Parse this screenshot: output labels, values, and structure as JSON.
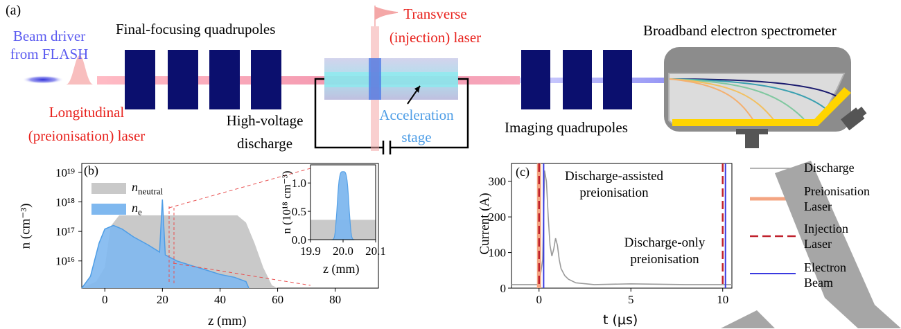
{
  "panel_a": {
    "tag": "(a)",
    "beam_driver": [
      "Beam driver",
      "from FLASH"
    ],
    "final_focusing": "Final-focusing quadrupoles",
    "transverse_laser": [
      "Transverse",
      "(injection) laser"
    ],
    "spectrometer": "Broadband electron spectrometer",
    "longitudinal_laser": [
      "Longitudinal",
      "(preionisation) laser"
    ],
    "high_voltage": [
      "High-voltage",
      "discharge"
    ],
    "acceleration_stage": [
      "Acceleration",
      "stage"
    ],
    "imaging": "Imaging quadrupoles",
    "colors": {
      "quad": "#0b0f6e",
      "laser": "#e8211c",
      "driver": "#5b5bf0",
      "stage": "#4d9de6",
      "spectrometer_body": "#8c8c8c",
      "screen": "#ffd400"
    }
  },
  "panel_b": {
    "tag": "(b)",
    "ylabel_main": "n (cm⁻³)",
    "xlabel_main": "z (mm)",
    "ylabel_inset": "n (10¹⁸ cm⁻³)",
    "xlabel_inset": "z (mm)",
    "chart_data": {
      "type": "area",
      "title": "",
      "xlim": [
        -8,
        95
      ],
      "ylim_log": [
        1200000000000000.0,
        2e+19
      ],
      "x_ticks": [
        "0",
        "20",
        "40",
        "60",
        "80"
      ],
      "y_ticks": [
        "10¹⁶",
        "10¹⁷",
        "10¹⁸",
        "10¹⁹"
      ],
      "series": [
        {
          "name": "n_neutral",
          "color": "#c9c9c9",
          "x": [
            -8,
            -3,
            0,
            2,
            5,
            10,
            46,
            49,
            52,
            55,
            58,
            60
          ],
          "y": [
            1200000000000000.0,
            2000000000000000.0,
            6000000000000000.0,
            1.5e+17,
            3.5e+17,
            3.5e+17,
            3.5e+17,
            2e+17,
            4e+16,
            6000000000000000.0,
            1500000000000000.0,
            1200000000000000.0
          ]
        },
        {
          "name": "n_e",
          "color": "#7fb8ef",
          "x": [
            -8,
            -5,
            -2,
            0,
            3,
            6,
            10,
            15,
            19,
            20,
            21,
            25,
            30,
            35,
            40,
            45,
            49,
            50
          ],
          "y": [
            1200000000000000.0,
            3000000000000000.0,
            4e+16,
            1.2e+17,
            1.6e+17,
            1.2e+17,
            6.5e+16,
            3.5e+16,
            2e+16,
            1.2e+18,
            1.6e+16,
            1e+16,
            7000000000000000.0,
            5000000000000000.0,
            3500000000000000.0,
            2800000000000000.0,
            2000000000000000.0,
            1200000000000000.0
          ]
        }
      ],
      "inset": {
        "type": "area",
        "xlim": [
          19.9,
          20.1
        ],
        "ylim": [
          0,
          1.32
        ],
        "x_ticks": [
          "19.9",
          "20.0",
          "20.1"
        ],
        "y_ticks": [
          "0.0",
          "0.5",
          "1.0"
        ],
        "neutral_level": 0.35,
        "n_e_x": [
          19.97,
          19.98,
          19.99,
          20.0,
          20.01,
          20.02,
          20.03
        ],
        "n_e_y": [
          0,
          0.55,
          1.1,
          1.2,
          1.1,
          0.55,
          0
        ]
      },
      "legend_position": "top-left"
    }
  },
  "panel_c": {
    "tag": "(c)",
    "ylabel": "Current (A)",
    "xlabel": "t (μs)",
    "annot_assisted": [
      "Discharge-assisted",
      "preionisation"
    ],
    "annot_only": [
      "Discharge-only",
      "preionisation"
    ],
    "legend": [
      {
        "label": [
          "Discharge"
        ],
        "color": "#9a9a9a",
        "style": "solid"
      },
      {
        "label": [
          "Preionisation",
          "Laser"
        ],
        "color": "#f4a582",
        "style": "thick"
      },
      {
        "label": [
          "Injection",
          "Laser"
        ],
        "color": "#c0212c",
        "style": "dashed"
      },
      {
        "label": [
          "Electron",
          "Beam"
        ],
        "color": "#3a3ae0",
        "style": "solid"
      }
    ],
    "chart_data": {
      "type": "line",
      "title": "",
      "xlim": [
        -1.5,
        10.5
      ],
      "ylim": [
        0,
        350
      ],
      "x_ticks": [
        "0",
        "5",
        "10"
      ],
      "y_ticks": [
        "0",
        "100",
        "200",
        "300"
      ],
      "series": [
        {
          "name": "Discharge",
          "x": [
            -1.5,
            0,
            0.2,
            0.3,
            0.4,
            0.5,
            0.6,
            0.7,
            0.8,
            0.9,
            1.0,
            1.1,
            1.2,
            1.4,
            1.6,
            2.0,
            3.0,
            5.0,
            8.0,
            10.5
          ],
          "y": [
            10,
            10,
            80,
            330,
            300,
            200,
            120,
            90,
            110,
            140,
            120,
            80,
            55,
            35,
            25,
            15,
            10,
            12,
            10,
            10
          ]
        }
      ],
      "vlines": [
        {
          "name": "Preionisation Laser",
          "x": 0
        },
        {
          "name": "Injection Laser",
          "x": 0
        },
        {
          "name": "Electron Beam",
          "x": 0.25
        },
        {
          "name": "Injection Laser",
          "x": 10
        },
        {
          "name": "Electron Beam",
          "x": 10.15
        }
      ]
    }
  }
}
